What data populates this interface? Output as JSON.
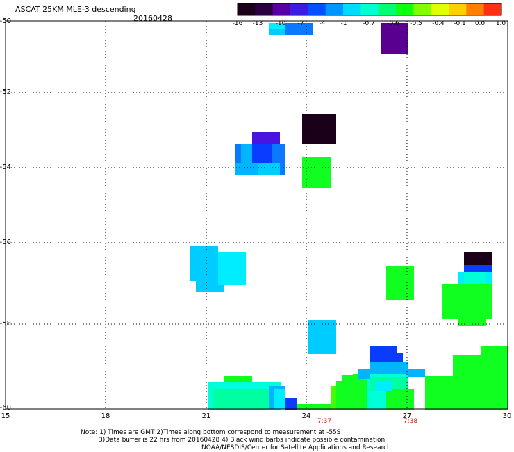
{
  "header": {
    "title": "ASCAT 25KM MLE-3 descending",
    "date": "20160428"
  },
  "colorbar": {
    "labels": [
      "-16",
      "-13",
      "-10",
      "-7",
      "-4",
      "-1",
      "-0.7",
      "-0.6",
      "-0.5",
      "-0.4",
      "-0.1",
      "0.0",
      "1.0"
    ],
    "colors": [
      "#1a0018",
      "#2a0040",
      "#5800a0",
      "#3c1ee0",
      "#0050ff",
      "#0096ff",
      "#00dcff",
      "#00ffd0",
      "#00ff70",
      "#10ff10",
      "#80ff00",
      "#e0ff00",
      "#ffd000",
      "#ff8000",
      "#ff3010"
    ]
  },
  "axes": {
    "y_labels": [
      "-50",
      "-52",
      "-54",
      "-56",
      "-58",
      "-60"
    ],
    "x_labels": [
      "15",
      "18",
      "21",
      "24",
      "27",
      "30"
    ],
    "time_labels": [
      "7:37",
      "7:38"
    ]
  },
  "map_cells": {
    "description_colors": {
      "dark": "#1a0018",
      "purple": "#5a0090",
      "violet": "#4a14e0",
      "blue": "#0a3cff",
      "azure": "#0a78ff",
      "lightblue": "#00b4ff",
      "sky": "#00ccff",
      "cyan": "#00ecff",
      "aqua": "#00ffd8",
      "mint": "#00ffa0",
      "green": "#10ff20",
      "lime": "#40ff00"
    }
  },
  "footer": {
    "line1": "Note: 1) Times are GMT 2)Times along bottom correspond to measurement at -55S",
    "line2": "3)Data buffer is 22 hrs from 20160428 4) Black wind barbs indicate possible contamination",
    "line3": "NOAA/NESDIS/Center for Satellite Applications and Research"
  }
}
